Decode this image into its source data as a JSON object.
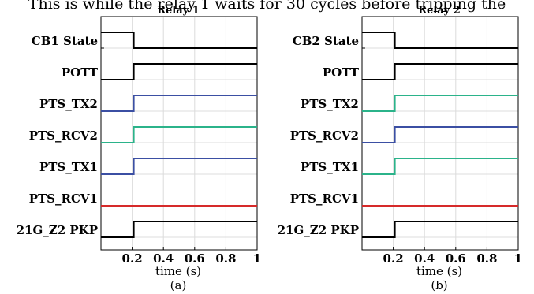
{
  "header_fragment": "This is while the relay 1 waits for 30 cycles before tripping the",
  "chart_data": [
    {
      "type": "line",
      "title": "Relay 1",
      "caption": "(a)",
      "xlabel": "time (s)",
      "xlim": [
        0,
        1
      ],
      "xticks": [
        "0.2",
        "0.4",
        "0.6",
        "0.8",
        "1"
      ],
      "xtick_values": [
        0.2,
        0.4,
        0.6,
        0.8,
        1.0
      ],
      "grid": true,
      "series": [
        {
          "name": "CB1 State",
          "color": "#000000",
          "x": [
            0,
            0.21,
            0.21,
            1
          ],
          "y": [
            1,
            1,
            0,
            0
          ]
        },
        {
          "name": "POTT",
          "color": "#000000",
          "x": [
            0,
            0.21,
            0.21,
            1
          ],
          "y": [
            0,
            0,
            1,
            1
          ]
        },
        {
          "name": "PTS_TX2",
          "color": "#3b4fa3",
          "x": [
            0,
            0.21,
            0.21,
            1
          ],
          "y": [
            0,
            0,
            1,
            1
          ]
        },
        {
          "name": "PTS_RCV2",
          "color": "#2bb38a",
          "x": [
            0,
            0.21,
            0.21,
            1
          ],
          "y": [
            0,
            0,
            1,
            1
          ]
        },
        {
          "name": "PTS_TX1",
          "color": "#3b4fa3",
          "x": [
            0,
            0.21,
            0.21,
            1
          ],
          "y": [
            0,
            0,
            1,
            1
          ]
        },
        {
          "name": "PTS_RCV1",
          "color": "#d62a2a",
          "x": [
            0,
            1
          ],
          "y": [
            0,
            0
          ]
        },
        {
          "name": "21G_Z2 PKP",
          "color": "#000000",
          "x": [
            0,
            0.21,
            0.21,
            1
          ],
          "y": [
            0,
            0,
            1,
            1
          ]
        }
      ]
    },
    {
      "type": "line",
      "title": "Relay 2",
      "caption": "(b)",
      "xlabel": "time (s)",
      "xlim": [
        0,
        1
      ],
      "xticks": [
        "0.2",
        "0.4",
        "0.6",
        "0.8",
        "1"
      ],
      "xtick_values": [
        0.2,
        0.4,
        0.6,
        0.8,
        1.0
      ],
      "grid": true,
      "series": [
        {
          "name": "CB2 State",
          "color": "#000000",
          "x": [
            0,
            0.21,
            0.21,
            1
          ],
          "y": [
            1,
            1,
            0,
            0
          ]
        },
        {
          "name": "POTT",
          "color": "#000000",
          "x": [
            0,
            0.21,
            0.21,
            1
          ],
          "y": [
            0,
            0,
            1,
            1
          ]
        },
        {
          "name": "PTS_TX2",
          "color": "#2bb38a",
          "x": [
            0,
            0.21,
            0.21,
            1
          ],
          "y": [
            0,
            0,
            1,
            1
          ]
        },
        {
          "name": "PTS_RCV2",
          "color": "#3b4fa3",
          "x": [
            0,
            0.21,
            0.21,
            1
          ],
          "y": [
            0,
            0,
            1,
            1
          ]
        },
        {
          "name": "PTS_TX1",
          "color": "#2bb38a",
          "x": [
            0,
            0.21,
            0.21,
            1
          ],
          "y": [
            0,
            0,
            1,
            1
          ]
        },
        {
          "name": "PTS_RCV1",
          "color": "#d62a2a",
          "x": [
            0,
            1
          ],
          "y": [
            0,
            0
          ]
        },
        {
          "name": "21G_Z2 PKP",
          "color": "#000000",
          "x": [
            0,
            0.21,
            0.21,
            1
          ],
          "y": [
            0,
            0,
            1,
            1
          ]
        }
      ]
    }
  ]
}
